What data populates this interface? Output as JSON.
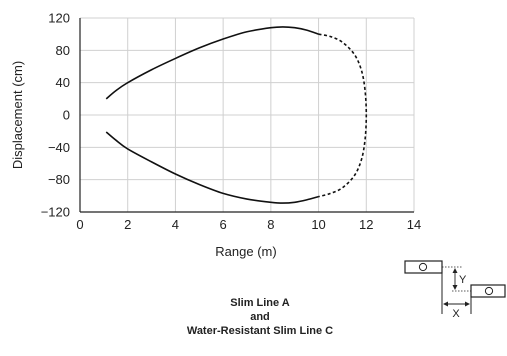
{
  "chart_data": {
    "type": "line",
    "xlabel": "Range (m)",
    "ylabel": "Displacement (cm)",
    "xlim": [
      0,
      14
    ],
    "ylim": [
      -120,
      120
    ],
    "x_ticks": [
      "0",
      "2",
      "4",
      "6",
      "8",
      "10",
      "12",
      "14"
    ],
    "y_ticks": [
      "120",
      "80",
      "40",
      "0",
      "−40",
      "−80",
      "−120"
    ],
    "grid": true,
    "series": [
      {
        "style": "solid",
        "points": [
          [
            1.1,
            20
          ],
          [
            1.5,
            30
          ],
          [
            2,
            40
          ],
          [
            3,
            56
          ],
          [
            4,
            70
          ],
          [
            5,
            83
          ],
          [
            6,
            94
          ],
          [
            7,
            103
          ],
          [
            8,
            108
          ],
          [
            8.5,
            109
          ],
          [
            9,
            108
          ],
          [
            9.5,
            105
          ],
          [
            10,
            100
          ]
        ]
      },
      {
        "style": "dashed",
        "points": [
          [
            10,
            100
          ],
          [
            10.5,
            97
          ],
          [
            11,
            90
          ],
          [
            11.5,
            75
          ],
          [
            11.8,
            55
          ],
          [
            11.95,
            30
          ],
          [
            12,
            0
          ],
          [
            11.95,
            -30
          ],
          [
            11.8,
            -55
          ],
          [
            11.5,
            -75
          ],
          [
            11,
            -90
          ],
          [
            10.5,
            -97
          ],
          [
            10,
            -101
          ]
        ]
      },
      {
        "style": "solid",
        "points": [
          [
            1.1,
            -21
          ],
          [
            1.5,
            -31
          ],
          [
            2,
            -42
          ],
          [
            3,
            -58
          ],
          [
            4,
            -73
          ],
          [
            5,
            -86
          ],
          [
            6,
            -97
          ],
          [
            7,
            -104
          ],
          [
            8,
            -108
          ],
          [
            8.5,
            -109
          ],
          [
            9,
            -108
          ],
          [
            9.5,
            -105
          ],
          [
            10,
            -101
          ]
        ]
      }
    ]
  },
  "diagram": {
    "x_label": "X",
    "y_label": "Y"
  },
  "caption": {
    "line1": "Slim Line A",
    "line2": "and",
    "line3": "Water-Resistant Slim Line C"
  }
}
